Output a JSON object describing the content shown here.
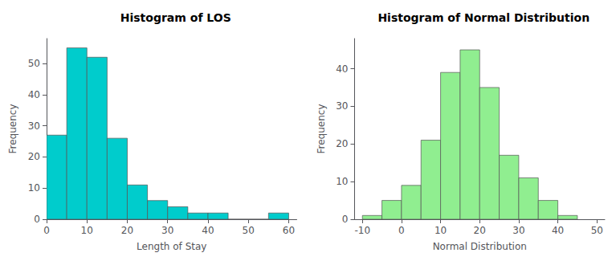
{
  "chart_data": [
    {
      "type": "histogram",
      "title": "Histogram of LOS",
      "xlabel": "Length of Stay",
      "ylabel": "Frequency",
      "bins": [
        0,
        5,
        10,
        15,
        20,
        25,
        30,
        35,
        40,
        45,
        50,
        55,
        60
      ],
      "values": [
        27,
        55,
        52,
        26,
        11,
        6,
        4,
        2,
        2,
        0,
        0,
        2
      ],
      "color": "#00CCCC",
      "xlim": [
        0,
        62
      ],
      "xticks": [
        0,
        10,
        20,
        30,
        40,
        50,
        60
      ],
      "ylim": [
        0,
        58
      ],
      "yticks": [
        0,
        10,
        20,
        30,
        40,
        50
      ],
      "grid": false
    },
    {
      "type": "histogram",
      "title": "Histogram of Normal Distribution",
      "xlabel": "Normal Distribution",
      "ylabel": "Frequency",
      "bins": [
        -10,
        -5,
        0,
        5,
        10,
        15,
        20,
        25,
        30,
        35,
        40,
        45
      ],
      "values": [
        1,
        5,
        9,
        21,
        39,
        45,
        35,
        17,
        11,
        5,
        1
      ],
      "color": "#90EE90",
      "xlim": [
        -12,
        52
      ],
      "xticks": [
        -10,
        0,
        10,
        20,
        30,
        40,
        50
      ],
      "ylim": [
        0,
        48
      ],
      "yticks": [
        0,
        10,
        20,
        30,
        40
      ],
      "grid": false
    }
  ]
}
